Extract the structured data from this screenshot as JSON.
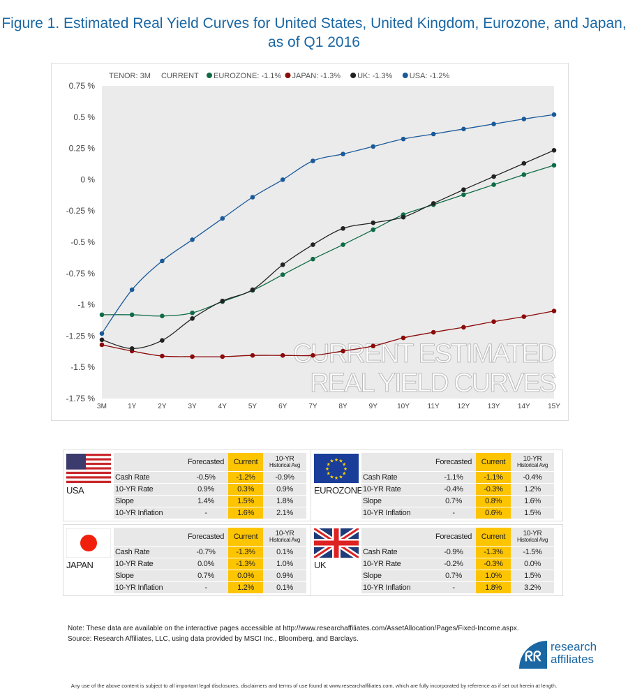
{
  "title": "Figure 1. Estimated Real Yield Curves for United States, United Kingdom, Eurozone, and Japan, as of Q1 2016",
  "chart_data": {
    "type": "line",
    "title": "CURRENT ESTIMATED REAL YIELD CURVES",
    "header": {
      "tenor": "TENOR: 3M",
      "current": "CURRENT"
    },
    "categories": [
      "3M",
      "1Y",
      "2Y",
      "3Y",
      "4Y",
      "5Y",
      "6Y",
      "7Y",
      "8Y",
      "9Y",
      "10Y",
      "11Y",
      "12Y",
      "13Y",
      "14Y",
      "15Y"
    ],
    "yticks": [
      0.75,
      0.5,
      0.25,
      0,
      -0.25,
      -0.5,
      -0.75,
      -1,
      -1.25,
      -1.5,
      -1.75
    ],
    "ytick_labels": [
      "0.75 %",
      "0.5 %",
      "0.25 %",
      "0 %",
      "-0.25 %",
      "-0.5 %",
      "-0.75 %",
      "-1 %",
      "-1.25 %",
      "-1.5 %",
      "-1.75 %"
    ],
    "ylim": [
      -1.75,
      0.75
    ],
    "grid": false,
    "legend_position": "top",
    "series": [
      {
        "name": "EUROZONE",
        "legend": "EUROZONE: -1.1%",
        "color": "#0e6b46",
        "values": [
          -1.08,
          -1.08,
          -1.09,
          -1.065,
          -0.975,
          -0.885,
          -0.76,
          -0.635,
          -0.52,
          -0.4,
          -0.28,
          -0.2,
          -0.12,
          -0.04,
          0.04,
          0.115
        ]
      },
      {
        "name": "JAPAN",
        "legend": "JAPAN: -1.3%",
        "color": "#8b0a0a",
        "values": [
          -1.32,
          -1.37,
          -1.41,
          -1.415,
          -1.415,
          -1.405,
          -1.405,
          -1.405,
          -1.37,
          -1.33,
          -1.265,
          -1.22,
          -1.18,
          -1.135,
          -1.095,
          -1.05
        ]
      },
      {
        "name": "UK",
        "legend": "UK: -1.3%",
        "color": "#222222",
        "values": [
          -1.28,
          -1.35,
          -1.285,
          -1.11,
          -0.97,
          -0.88,
          -0.68,
          -0.52,
          -0.39,
          -0.345,
          -0.3,
          -0.19,
          -0.08,
          0.025,
          0.13,
          0.235
        ]
      },
      {
        "name": "USA",
        "legend": "USA: -1.2%",
        "color": "#1a5a9a",
        "values": [
          -1.23,
          -0.88,
          -0.65,
          -0.48,
          -0.31,
          -0.14,
          0,
          0.15,
          0.205,
          0.265,
          0.325,
          0.365,
          0.405,
          0.445,
          0.485,
          0.52
        ]
      }
    ]
  },
  "tables": [
    {
      "country": "USA",
      "flag": "usa-flag",
      "rows": [
        [
          "Cash Rate",
          "-0.5%",
          "-1.2%",
          "-0.9%"
        ],
        [
          "10-YR Rate",
          "0.9%",
          "0.3%",
          "0.9%"
        ],
        [
          "Slope",
          "1.4%",
          "1.5%",
          "1.8%"
        ],
        [
          "10-YR Inflation",
          "-",
          "1.6%",
          "2.1%"
        ]
      ]
    },
    {
      "country": "EUROZONE",
      "flag": "eu-flag",
      "rows": [
        [
          "Cash Rate",
          "-1.1%",
          "-1.1%",
          "-0.4%"
        ],
        [
          "10-YR Rate",
          "-0.4%",
          "-0.3%",
          "1.2%"
        ],
        [
          "Slope",
          "0.7%",
          "0.8%",
          "1.6%"
        ],
        [
          "10-YR Inflation",
          "-",
          "0.6%",
          "1.5%"
        ]
      ]
    },
    {
      "country": "JAPAN",
      "flag": "japan-flag",
      "rows": [
        [
          "Cash Rate",
          "-0.7%",
          "-1.3%",
          "0.1%"
        ],
        [
          "10-YR Rate",
          "0.0%",
          "-1.3%",
          "1.0%"
        ],
        [
          "Slope",
          "0.7%",
          "0.0%",
          "0.9%"
        ],
        [
          "10-YR Inflation",
          "-",
          "1.2%",
          "0.1%"
        ]
      ]
    },
    {
      "country": "UK",
      "flag": "uk-flag",
      "rows": [
        [
          "Cash Rate",
          "-0.9%",
          "-1.3%",
          "-1.5%"
        ],
        [
          "10-YR Rate",
          "-0.2%",
          "-0.3%",
          "0.0%"
        ],
        [
          "Slope",
          "0.7%",
          "1.0%",
          "1.5%"
        ],
        [
          "10-YR Inflation",
          "-",
          "1.8%",
          "3.2%"
        ]
      ]
    }
  ],
  "table_headers": {
    "forecasted": "Forecasted",
    "current": "Current",
    "hist_top": "10-YR",
    "hist_bottom": "Historical Avg"
  },
  "note": "Note: These data are available on the interactive pages accessible at http://www.researchaffiliates.com/AssetAllocation/Pages/Fixed-Income.aspx.",
  "source": "Source: Research Affiliates, LLC, using data provided by MSCI Inc., Bloomberg, and Barclays.",
  "logo": {
    "line1": "research",
    "line2": "affiliates",
    "mark": "ʀʀ"
  },
  "disclaimer": "Any use of the above content is subject to all important legal disclosures, disclaimers and terms of use found at www.researchaffiliates.com, which are fully incorporated by reference as if set out herein at length."
}
